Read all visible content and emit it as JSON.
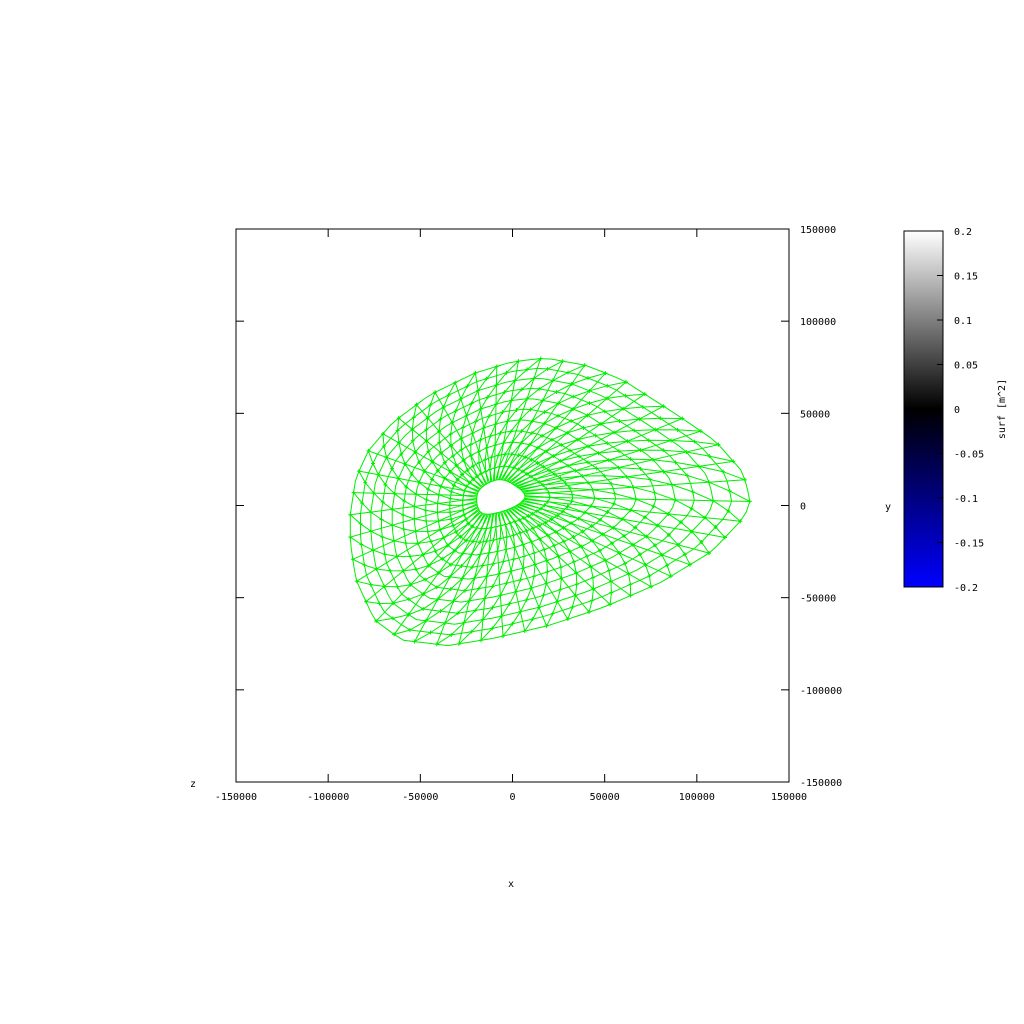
{
  "chart_data": {
    "type": "scatter",
    "description_kind": "3D surface mesh (top view)",
    "xlabel": "x",
    "ylabel": "y",
    "zlabel": "z",
    "xlim": [
      -150000,
      150000
    ],
    "ylim": [
      -150000,
      150000
    ],
    "xticks": [
      -150000,
      -100000,
      -50000,
      0,
      50000,
      100000,
      150000
    ],
    "yticks": [
      -150000,
      -100000,
      -50000,
      0,
      50000,
      100000,
      150000
    ],
    "xtick_labels": [
      "-150000",
      "-100000",
      "-50000",
      "0",
      "50000",
      "100000",
      "150000"
    ],
    "ytick_labels": [
      "-150000",
      "-100000",
      "-50000",
      "0",
      "50000",
      "100000",
      "150000"
    ],
    "grid": false,
    "series_color": "#00ee00",
    "outline": [
      [
        -88000,
        -5000
      ],
      [
        -85000,
        15000
      ],
      [
        -78000,
        30000
      ],
      [
        -65000,
        45000
      ],
      [
        -45000,
        60000
      ],
      [
        -20000,
        72000
      ],
      [
        0,
        78000
      ],
      [
        18000,
        80000
      ],
      [
        40000,
        76000
      ],
      [
        60000,
        68000
      ],
      [
        88000,
        50000
      ],
      [
        110000,
        35000
      ],
      [
        125000,
        18000
      ],
      [
        129000,
        3000
      ],
      [
        126000,
        -6000
      ],
      [
        108000,
        -25000
      ],
      [
        80000,
        -42000
      ],
      [
        50000,
        -55000
      ],
      [
        20000,
        -65000
      ],
      [
        -10000,
        -72000
      ],
      [
        -35000,
        -76000
      ],
      [
        -60000,
        -73000
      ],
      [
        -75000,
        -62000
      ],
      [
        -85000,
        -40000
      ],
      [
        -88000,
        -20000
      ]
    ],
    "colorbar": {
      "label": "surf [m^2]",
      "min": -0.2,
      "max": 0.2,
      "ticks": [
        "0.2",
        "0.15",
        "0.1",
        "0.05",
        "0",
        "-0.05",
        "-0.1",
        "-0.15",
        "-0.2"
      ],
      "colors": [
        "#0000ff",
        "#000000",
        "#ffffff"
      ]
    }
  }
}
